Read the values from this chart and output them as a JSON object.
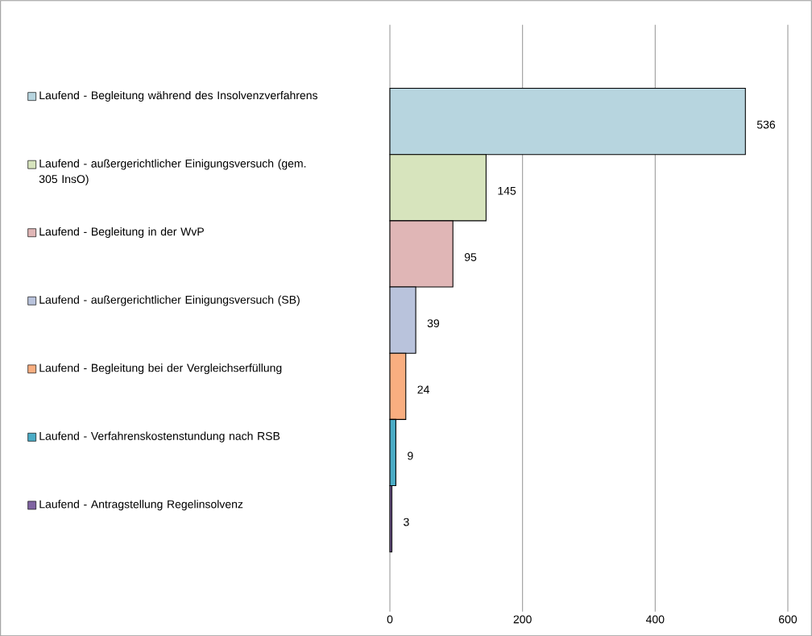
{
  "chart_data": {
    "type": "bar",
    "orientation": "horizontal",
    "categories": [
      null
    ],
    "series": [
      {
        "name": "Laufend - Begleitung während des Insolvenzverfahrens",
        "color": "#b7d5df",
        "values": [
          536
        ]
      },
      {
        "name": "Laufend - außergerichtlicher Einigungsversuch (gem. 305 InsO)",
        "color": "#d7e4bd",
        "values": [
          145
        ]
      },
      {
        "name": "Laufend - Begleitung in der WvP",
        "color": "#e0b6b6",
        "values": [
          95
        ]
      },
      {
        "name": "Laufend - außergerichtlicher Einigungsversuch (SB)",
        "color": "#b9c3dc",
        "values": [
          39
        ]
      },
      {
        "name": "Laufend - Begleitung bei der Vergleichserfüllung",
        "color": "#f9ae80",
        "values": [
          24
        ]
      },
      {
        "name": "Laufend - Verfahrenskostenstundung nach RSB",
        "color": "#4bacc6",
        "values": [
          9
        ]
      },
      {
        "name": "Laufend - Antragstellung Regelinsolvenz",
        "color": "#8064a2",
        "values": [
          3
        ]
      }
    ],
    "xlim": [
      0,
      600
    ],
    "xticks": [
      0,
      200,
      400,
      600
    ],
    "grid": "x",
    "legend": "left",
    "data_labels": true
  }
}
